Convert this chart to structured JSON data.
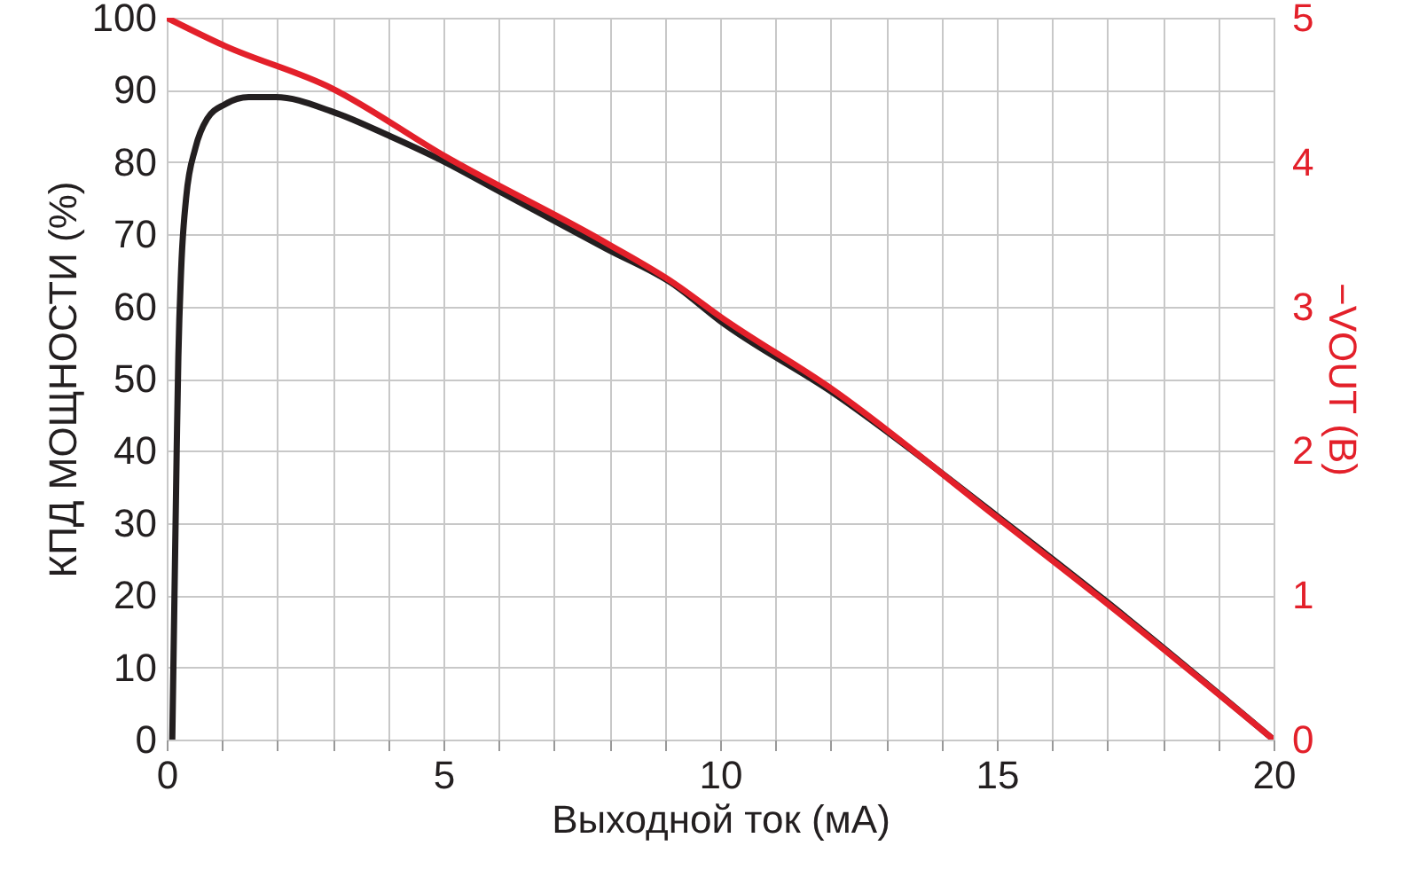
{
  "chart_data": {
    "type": "line",
    "xlabel": "Выходной ток (мА)",
    "ylabel": "КПД МОЩНОСТИ (%)",
    "y2label": "−VOUT (В)",
    "xlim": [
      0,
      20
    ],
    "ylim": [
      0,
      100
    ],
    "y2lim": [
      0,
      5
    ],
    "xticks": [
      0,
      {
        "value": 1,
        "label": null
      },
      {
        "value": 2,
        "label": null
      },
      {
        "value": 3,
        "label": null
      },
      {
        "value": 4,
        "label": null
      },
      5,
      {
        "value": 6,
        "label": null
      },
      {
        "value": 7,
        "label": null
      },
      {
        "value": 8,
        "label": null
      },
      {
        "value": 9,
        "label": null
      },
      10,
      {
        "value": 11,
        "label": null
      },
      {
        "value": 12,
        "label": null
      },
      {
        "value": 13,
        "label": null
      },
      {
        "value": 14,
        "label": null
      },
      15,
      {
        "value": 16,
        "label": null
      },
      {
        "value": 17,
        "label": null
      },
      {
        "value": 18,
        "label": null
      },
      {
        "value": 19,
        "label": null
      },
      20
    ],
    "yticks": [
      0,
      10,
      20,
      30,
      40,
      50,
      60,
      70,
      80,
      90,
      100
    ],
    "y2ticks": [
      0,
      1,
      2,
      3,
      4,
      5
    ],
    "grid": true,
    "line_style": "solid",
    "marker": "none",
    "series": [
      {
        "color": "#231f20",
        "x": [
          0.1,
          0.18,
          0.21,
          0.26,
          0.35,
          0.52,
          0.73,
          1.05,
          1.48,
          1.97,
          2.99,
          4.06,
          5.03,
          6.0,
          7.94,
          9.17,
          10.0,
          12.05,
          15.0,
          17.0,
          20.0
        ],
        "values": [
          0,
          40,
          53,
          65,
          75,
          82,
          86,
          88,
          89,
          89,
          87,
          83.5,
          80,
          76,
          68,
          63,
          58,
          48,
          31,
          19,
          0
        ]
      },
      {
        "color": "#e3202a",
        "axis": "y2",
        "x": [
          0,
          1.02,
          2.99,
          5.03,
          7.94,
          9.17,
          10.0,
          12.05,
          15.0,
          17.0,
          20.0
        ],
        "values": [
          5,
          4.81,
          4.51,
          4.04,
          3.44,
          3.16,
          2.93,
          2.42,
          1.54,
          0.94,
          0
        ]
      }
    ]
  }
}
